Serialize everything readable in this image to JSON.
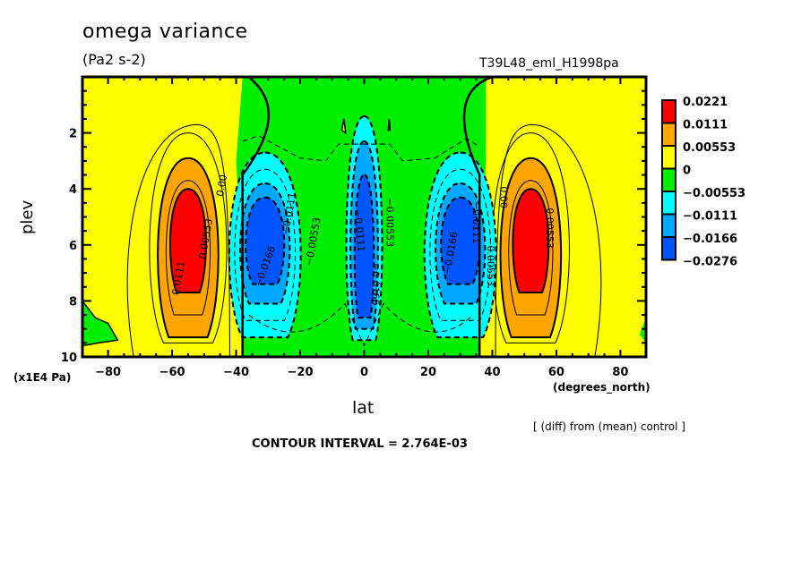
{
  "chart_data": {
    "type": "contour",
    "title": "omega variance",
    "units": "(Pa2 s-2)",
    "run_name": "T39L48_eml_H1998pa",
    "xlabel": "lat",
    "x_units": "(degrees_north)",
    "ylabel": "plev",
    "y_units": "(x1E4 Pa)",
    "xlim": [
      -88,
      88
    ],
    "ylim": [
      10,
      0
    ],
    "x_ticks": [
      -80,
      -60,
      -40,
      -20,
      0,
      20,
      40,
      60,
      80
    ],
    "x_tick_labels": [
      "−80",
      "−60",
      "−40",
      "−20",
      "0",
      "20",
      "40",
      "60",
      "80"
    ],
    "y_ticks": [
      2,
      4,
      6,
      8,
      10
    ],
    "y_tick_labels": [
      "2",
      "4",
      "6",
      "8",
      "10"
    ],
    "contour_interval_label": "CONTOUR INTERVAL = 2.764E-03",
    "note": "[ (diff) from (mean) control ]",
    "legend": {
      "placement": "right",
      "levels": [
        {
          "label": "0.0221",
          "color": "#ff0000"
        },
        {
          "label": "0.0111",
          "color": "#ffa500"
        },
        {
          "label": "0.00553",
          "color": "#ffff00"
        },
        {
          "label": "0",
          "color": "#00ee00"
        },
        {
          "label": "−0.00553",
          "color": "#00ffff"
        },
        {
          "label": "−0.0111",
          "color": "#00a8ff"
        },
        {
          "label": "−0.0166",
          "color": "#0055ff"
        },
        {
          "label": "−0.0276",
          "color": ""
        }
      ]
    },
    "features": [
      {
        "name": "southern-positive-cell",
        "lat": -55,
        "plev": 5.5,
        "peak_band": "0.0111 to 0.0221"
      },
      {
        "name": "southern-negative-cell",
        "lat": -30,
        "plev": 5.5,
        "peak_band": "-0.0276 to -0.0166"
      },
      {
        "name": "equatorial-negative-column",
        "lat": 0,
        "plev": 6.0,
        "peak_band": "-0.0276 to -0.0166"
      },
      {
        "name": "northern-negative-cell",
        "lat": 30,
        "plev": 5.5,
        "peak_band": "-0.0276 to -0.0166"
      },
      {
        "name": "northern-positive-cell",
        "lat": 52,
        "plev": 5.5,
        "peak_band": "0.0111 to 0.0221"
      }
    ],
    "contour_labels": [
      "0.0111",
      "0.00553",
      "0.00",
      "−0.0166",
      "−0.0111",
      "−0.00553",
      "−0.0111",
      "−0.0166",
      "−0.00553",
      "−0.0166",
      "−0.0111",
      "−0.00553",
      "0.00",
      "0.00553"
    ]
  }
}
